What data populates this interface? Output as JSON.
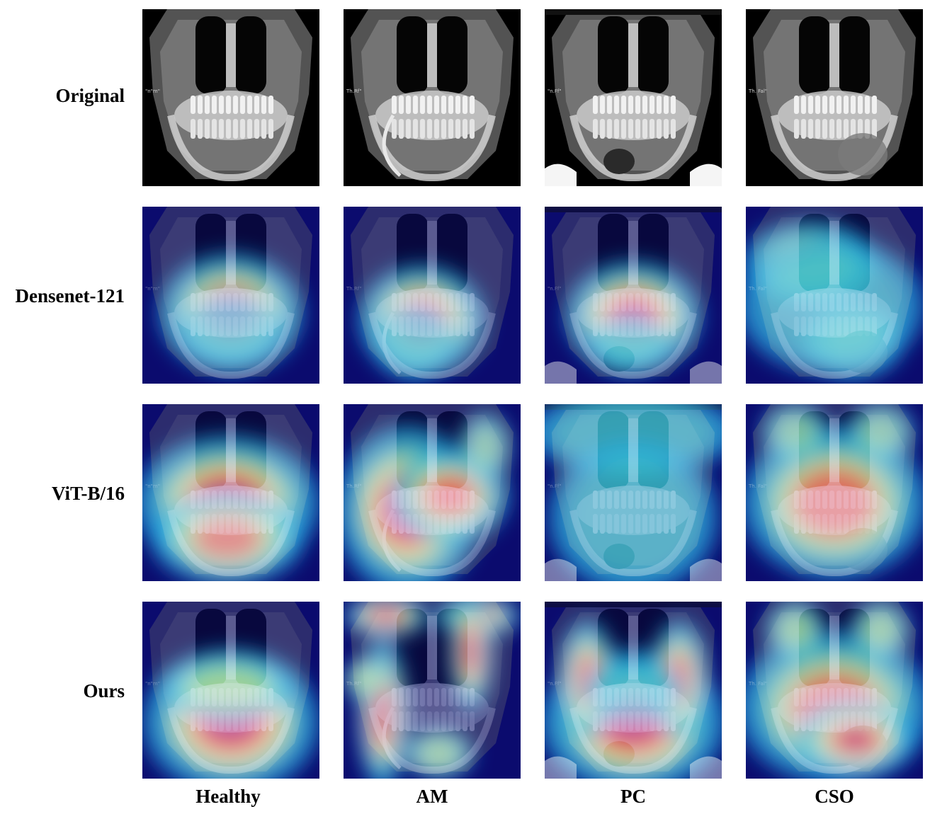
{
  "rows": [
    "Original",
    "Densenet-121",
    "ViT-B/16",
    "Ours"
  ],
  "columns": [
    "Healthy",
    "AM",
    "PC",
    "CSO"
  ],
  "panel_text": [
    "\"n\"m\"",
    "Th.Rf\"",
    "\"n.Ff\"",
    "Th. Fal\""
  ],
  "colors": {
    "background": "#ffffff",
    "heat_low": "#0b0b6e",
    "heat_high": "#d81e1e"
  }
}
